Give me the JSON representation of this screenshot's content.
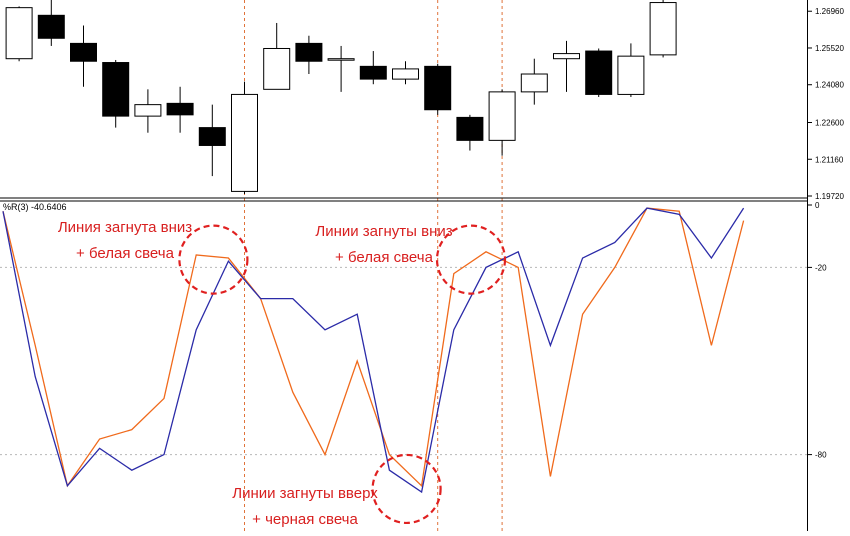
{
  "chart_data": [
    {
      "type": "candlestick",
      "y_ticks": [
        "1.26960",
        "1.25520",
        "1.24080",
        "1.22600",
        "1.21160",
        "1.19720"
      ],
      "ylim": [
        1.1972,
        1.274
      ],
      "candles": [
        {
          "o": 1.251,
          "h": 1.2715,
          "l": 1.25,
          "c": 1.271,
          "color": "white"
        },
        {
          "o": 1.268,
          "h": 1.275,
          "l": 1.256,
          "c": 1.259,
          "color": "black"
        },
        {
          "o": 1.257,
          "h": 1.264,
          "l": 1.24,
          "c": 1.25,
          "color": "black"
        },
        {
          "o": 1.2495,
          "h": 1.2505,
          "l": 1.224,
          "c": 1.2285,
          "color": "black"
        },
        {
          "o": 1.2285,
          "h": 1.239,
          "l": 1.222,
          "c": 1.233,
          "color": "white"
        },
        {
          "o": 1.2335,
          "h": 1.24,
          "l": 1.222,
          "c": 1.229,
          "color": "black"
        },
        {
          "o": 1.224,
          "h": 1.233,
          "l": 1.205,
          "c": 1.217,
          "color": "black"
        },
        {
          "o": 1.199,
          "h": 1.242,
          "l": 1.198,
          "c": 1.237,
          "color": "white"
        },
        {
          "o": 1.239,
          "h": 1.265,
          "l": 1.239,
          "c": 1.255,
          "color": "white"
        },
        {
          "o": 1.257,
          "h": 1.26,
          "l": 1.245,
          "c": 1.25,
          "color": "black"
        },
        {
          "o": 1.251,
          "h": 1.256,
          "l": 1.238,
          "c": 1.251,
          "color": "white"
        },
        {
          "o": 1.248,
          "h": 1.254,
          "l": 1.241,
          "c": 1.243,
          "color": "black"
        },
        {
          "o": 1.243,
          "h": 1.25,
          "l": 1.241,
          "c": 1.247,
          "color": "white"
        },
        {
          "o": 1.248,
          "h": 1.249,
          "l": 1.229,
          "c": 1.231,
          "color": "black"
        },
        {
          "o": 1.228,
          "h": 1.229,
          "l": 1.215,
          "c": 1.219,
          "color": "black"
        },
        {
          "o": 1.219,
          "h": 1.239,
          "l": 1.213,
          "c": 1.238,
          "color": "white"
        },
        {
          "o": 1.238,
          "h": 1.251,
          "l": 1.233,
          "c": 1.245,
          "color": "white"
        },
        {
          "o": 1.251,
          "h": 1.258,
          "l": 1.238,
          "c": 1.253,
          "color": "white"
        },
        {
          "o": 1.254,
          "h": 1.255,
          "l": 1.236,
          "c": 1.237,
          "color": "black"
        },
        {
          "o": 1.237,
          "h": 1.257,
          "l": 1.236,
          "c": 1.252,
          "color": "white"
        },
        {
          "o": 1.2525,
          "h": 1.274,
          "l": 1.2515,
          "c": 1.273,
          "color": "white"
        }
      ]
    },
    {
      "type": "line",
      "indicator_label": "%R(3) -40.6406",
      "y_ticks": [
        "0",
        "-20",
        "-80"
      ],
      "ylim": [
        -100,
        0
      ],
      "series": [
        {
          "color": "#2b2ba8",
          "values": [
            -2,
            -55,
            -90,
            -78,
            -85,
            -80,
            -40,
            -18,
            -30,
            -30,
            -40,
            -35,
            -85,
            -92,
            -40,
            -20,
            -15,
            -45,
            -17,
            -12,
            -1,
            -3,
            -17,
            -1
          ]
        },
        {
          "color": "#f06a1c",
          "values": [
            -2,
            -45,
            -90,
            -75,
            -72,
            -62,
            -16,
            -17,
            -30,
            -60,
            -80,
            -50,
            -80,
            -90,
            -22,
            -15,
            -20,
            -87,
            -35,
            -20,
            -1,
            -2,
            -45,
            -5
          ]
        }
      ],
      "marker_indices": [
        7,
        13,
        15
      ],
      "annotations": [
        {
          "line1": "Линия загнута вниз",
          "line2": "+ белая свеча",
          "circle_index": 7
        },
        {
          "line1": "Линии загнуты вниз",
          "line2": "+ белая свеча",
          "circle_index": 15
        },
        {
          "line1": "Линии загнуты вверх",
          "line2": "+ черная свеча",
          "circle_index": 13
        }
      ]
    }
  ]
}
